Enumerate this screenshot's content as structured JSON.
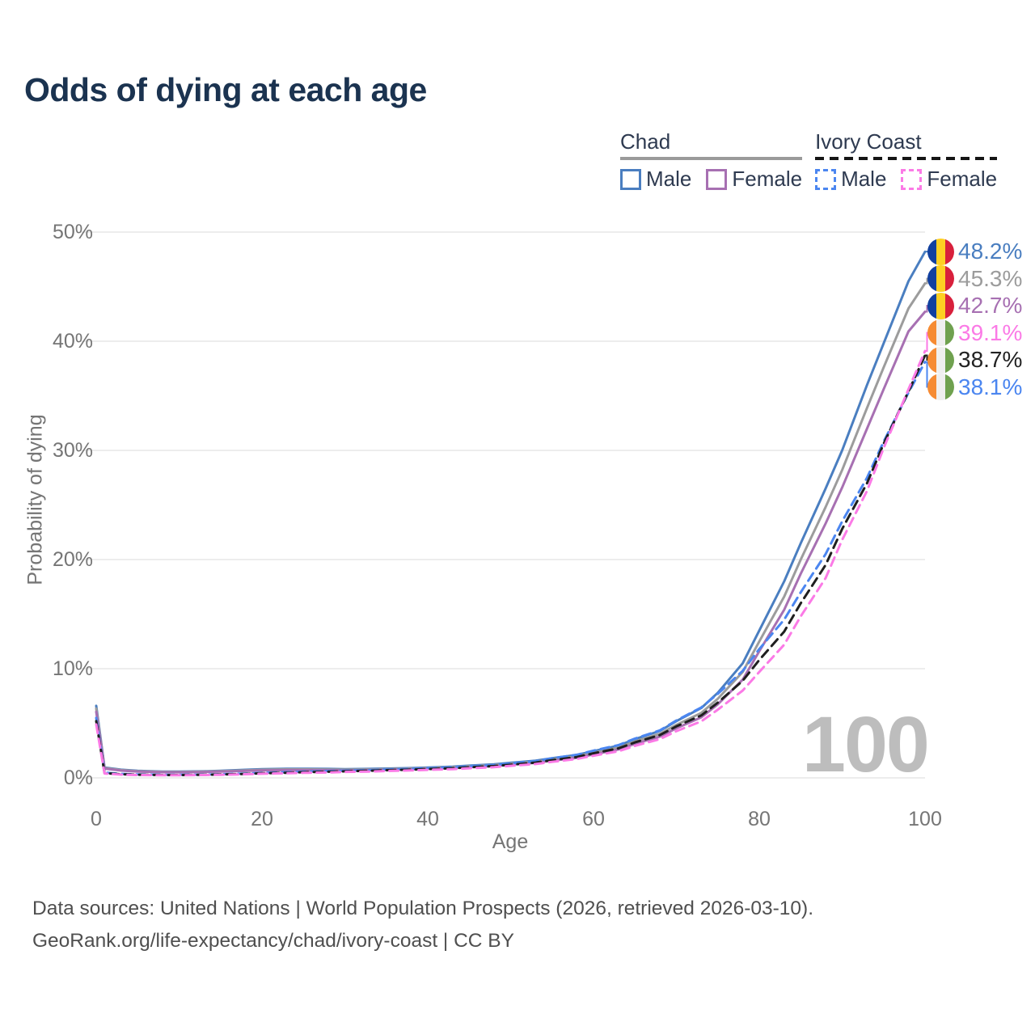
{
  "title": "Odds of dying at each age",
  "legend": {
    "groups": [
      {
        "title": "Chad",
        "items": [
          {
            "label": "Male"
          },
          {
            "label": "Female"
          }
        ]
      },
      {
        "title": "Ivory Coast",
        "items": [
          {
            "label": "Male"
          },
          {
            "label": "Female"
          }
        ]
      }
    ]
  },
  "footer": {
    "line1": "Data sources: United Nations | World Population Prospects (2026, retrieved 2026-03-10).",
    "line2": "GeoRank.org/life-expectancy/chad/ivory-coast | CC BY"
  },
  "chart_data": {
    "type": "line",
    "title": "Odds of dying at each age",
    "xlabel": "Age",
    "ylabel": "Probability of dying",
    "xlim": [
      0,
      100
    ],
    "ylim": [
      0,
      50
    ],
    "grid": "horizontal",
    "legend_position": "top-right",
    "x_ticks": [
      0,
      20,
      40,
      60,
      80,
      100
    ],
    "y_ticks": [
      "0%",
      "10%",
      "20%",
      "30%",
      "40%",
      "50%"
    ],
    "age_counter": "100",
    "ages": [
      0,
      1,
      3,
      5,
      8,
      10,
      13,
      15,
      18,
      20,
      23,
      25,
      28,
      30,
      33,
      35,
      38,
      40,
      43,
      45,
      48,
      50,
      53,
      55,
      58,
      60,
      63,
      65,
      68,
      70,
      73,
      75,
      78,
      80,
      83,
      85,
      88,
      90,
      93,
      95,
      98,
      100
    ],
    "flags": {
      "chad": [
        "#11409f",
        "#fdd023",
        "#d8203c"
      ],
      "ivory_coast": [
        "#f68b33",
        "#efefef",
        "#6fa14f"
      ]
    },
    "series": [
      {
        "id": "chad_male",
        "name": "Chad Male",
        "country": "Chad",
        "sex": "Male",
        "color": "#4a7ec0",
        "label_color": "#4a7ec0",
        "line_style": "solid",
        "flag": "chad",
        "end_label": "48.2%",
        "values": [
          6.6,
          0.95,
          0.75,
          0.65,
          0.58,
          0.57,
          0.6,
          0.65,
          0.74,
          0.8,
          0.84,
          0.84,
          0.82,
          0.8,
          0.82,
          0.85,
          0.9,
          0.95,
          1.03,
          1.12,
          1.24,
          1.38,
          1.58,
          1.8,
          2.1,
          2.45,
          2.95,
          3.55,
          4.3,
          5.2,
          6.4,
          7.8,
          10.5,
          13.5,
          18.0,
          21.5,
          26.5,
          30.0,
          36.0,
          39.8,
          45.5,
          48.2
        ]
      },
      {
        "id": "chad_total",
        "name": "Chad",
        "country": "Chad",
        "sex": "Both",
        "color": "#9c9c9c",
        "label_color": "#9c9c9c",
        "line_style": "solid",
        "flag": "chad",
        "end_label": "45.3%",
        "values": [
          6.35,
          0.9,
          0.71,
          0.61,
          0.55,
          0.54,
          0.57,
          0.61,
          0.69,
          0.74,
          0.78,
          0.78,
          0.76,
          0.75,
          0.77,
          0.8,
          0.85,
          0.89,
          0.97,
          1.05,
          1.16,
          1.29,
          1.48,
          1.69,
          1.97,
          2.3,
          2.77,
          3.33,
          4.03,
          4.85,
          5.95,
          7.25,
          9.7,
          12.5,
          16.6,
          20.0,
          24.8,
          28.2,
          33.9,
          37.6,
          43.0,
          45.3
        ]
      },
      {
        "id": "chad_female",
        "name": "Chad Female",
        "country": "Chad",
        "sex": "Female",
        "color": "#a770b2",
        "label_color": "#a770b2",
        "line_style": "solid",
        "flag": "chad",
        "end_label": "42.7%",
        "values": [
          6.05,
          0.85,
          0.67,
          0.57,
          0.52,
          0.51,
          0.54,
          0.57,
          0.64,
          0.68,
          0.71,
          0.71,
          0.7,
          0.69,
          0.71,
          0.74,
          0.79,
          0.83,
          0.9,
          0.98,
          1.08,
          1.2,
          1.38,
          1.58,
          1.84,
          2.15,
          2.6,
          3.12,
          3.78,
          4.55,
          5.55,
          6.75,
          9.0,
          11.6,
          15.4,
          18.7,
          23.3,
          26.6,
          32.0,
          35.6,
          40.9,
          42.7
        ]
      },
      {
        "id": "ic_female",
        "name": "Ivory Coast Female",
        "country": "Ivory Coast",
        "sex": "Female",
        "color": "#fb7ae6",
        "label_color": "#fb7ae6",
        "line_style": "dashed",
        "flag": "ivory_coast",
        "end_label": "39.1%",
        "values": [
          4.9,
          0.4,
          0.3,
          0.26,
          0.24,
          0.24,
          0.26,
          0.28,
          0.33,
          0.38,
          0.42,
          0.46,
          0.5,
          0.54,
          0.58,
          0.63,
          0.68,
          0.73,
          0.8,
          0.88,
          0.98,
          1.1,
          1.27,
          1.47,
          1.73,
          2.03,
          2.44,
          2.93,
          3.55,
          4.28,
          5.18,
          6.25,
          8.0,
          9.7,
          12.2,
          14.8,
          18.3,
          21.8,
          26.3,
          30.2,
          35.6,
          39.1
        ]
      },
      {
        "id": "ic_total",
        "name": "Ivory Coast",
        "country": "Ivory Coast",
        "sex": "Both",
        "color": "#1f1f1f",
        "label_color": "#222222",
        "line_style": "dashed",
        "flag": "ivory_coast",
        "end_label": "38.7%",
        "values": [
          5.2,
          0.44,
          0.33,
          0.29,
          0.26,
          0.26,
          0.28,
          0.31,
          0.36,
          0.42,
          0.47,
          0.52,
          0.56,
          0.6,
          0.65,
          0.7,
          0.75,
          0.81,
          0.88,
          0.97,
          1.08,
          1.21,
          1.4,
          1.62,
          1.91,
          2.25,
          2.7,
          3.25,
          3.92,
          4.72,
          5.72,
          6.9,
          8.9,
          10.8,
          13.4,
          16.0,
          19.5,
          22.8,
          27.0,
          30.6,
          35.4,
          38.7
        ]
      },
      {
        "id": "ic_male",
        "name": "Ivory Coast Male",
        "country": "Ivory Coast",
        "sex": "Male",
        "color": "#4b86f0",
        "label_color": "#4b86f0",
        "line_style": "dashed",
        "flag": "ivory_coast",
        "end_label": "38.1%",
        "values": [
          5.5,
          0.48,
          0.36,
          0.31,
          0.28,
          0.28,
          0.3,
          0.33,
          0.39,
          0.46,
          0.52,
          0.57,
          0.62,
          0.66,
          0.71,
          0.76,
          0.82,
          0.88,
          0.96,
          1.05,
          1.17,
          1.32,
          1.52,
          1.8,
          2.12,
          2.5,
          3.0,
          3.6,
          4.35,
          5.25,
          6.45,
          7.7,
          9.8,
          11.8,
          14.5,
          17.0,
          20.5,
          23.5,
          27.5,
          30.8,
          35.3,
          38.1
        ]
      }
    ]
  }
}
